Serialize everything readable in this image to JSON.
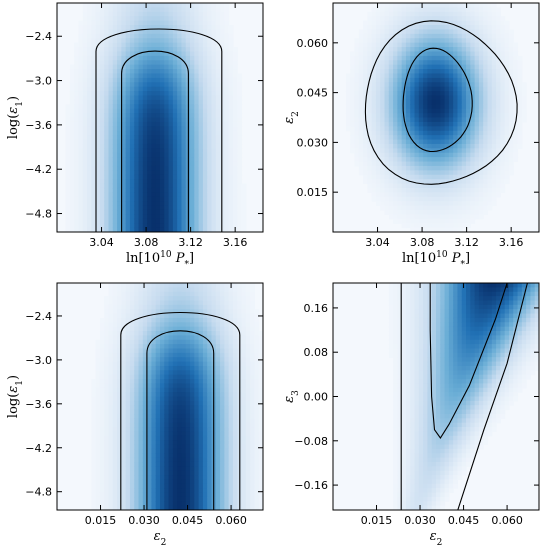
{
  "chart_data": [
    {
      "type": "heatmap",
      "title": "",
      "xlabel": "ln[10^10 P_*]",
      "ylabel": "log(ε1)",
      "xlim": [
        3.0,
        3.185
      ],
      "ylim": [
        -5.05,
        -1.95
      ],
      "xticks": [
        3.04,
        3.08,
        3.12,
        3.16
      ],
      "xtick_labels": [
        "3.04",
        "3.08",
        "3.12",
        "3.16"
      ],
      "yticks": [
        -2.4,
        -3.0,
        -3.6,
        -4.2,
        -4.8
      ],
      "ytick_labels": [
        "−2.4",
        "−3.0",
        "−3.6",
        "−4.2",
        "−4.8"
      ],
      "peak": {
        "x": 3.09,
        "y": -4.6
      },
      "density_shape": "plateau",
      "contours": [
        {
          "level": "68%",
          "x_range": [
            3.058,
            3.118
          ],
          "y_top": -2.5
        },
        {
          "level": "95%",
          "x_range": [
            3.035,
            3.148
          ],
          "y_top": -2.2
        }
      ],
      "colormap": [
        "#f4f8fd",
        "#c6dbef",
        "#6baed6",
        "#2171b5",
        "#08306b"
      ],
      "grid": false
    },
    {
      "type": "heatmap",
      "title": "",
      "xlabel": "ln[10^10 P_*]",
      "ylabel": "ε2",
      "xlim": [
        3.0,
        3.185
      ],
      "ylim": [
        0.003,
        0.072
      ],
      "xticks": [
        3.04,
        3.08,
        3.12,
        3.16
      ],
      "xtick_labels": [
        "3.04",
        "3.08",
        "3.12",
        "3.16"
      ],
      "yticks": [
        0.015,
        0.03,
        0.045,
        0.06
      ],
      "ytick_labels": [
        "0.015",
        "0.030",
        "0.045",
        "0.060"
      ],
      "peak": {
        "x": 3.092,
        "y": 0.042
      },
      "density_shape": "gaussian",
      "contours": [
        {
          "level": "68%",
          "center": [
            3.093,
            0.0425
          ],
          "half_width_x": 0.031,
          "half_width_y": 0.0155
        },
        {
          "level": "95%",
          "center": [
            3.095,
            0.0415
          ],
          "half_width_x": 0.068,
          "half_width_y": 0.0245
        }
      ],
      "colormap": [
        "#f4f8fd",
        "#c6dbef",
        "#6baed6",
        "#2171b5",
        "#08306b"
      ],
      "grid": false
    },
    {
      "type": "heatmap",
      "title": "",
      "xlabel": "ε2",
      "ylabel": "log(ε1)",
      "xlim": [
        0.0,
        0.071
      ],
      "ylim": [
        -5.05,
        -1.95
      ],
      "xticks": [
        0.015,
        0.03,
        0.045,
        0.06
      ],
      "xtick_labels": [
        "0.015",
        "0.030",
        "0.045",
        "0.060"
      ],
      "yticks": [
        -2.4,
        -3.0,
        -3.6,
        -4.2,
        -4.8
      ],
      "ytick_labels": [
        "−2.4",
        "−3.0",
        "−3.6",
        "−4.2",
        "−4.8"
      ],
      "peak": {
        "x": 0.041,
        "y": -4.6
      },
      "density_shape": "plateau",
      "contours": [
        {
          "level": "68%",
          "x_range": [
            0.031,
            0.054
          ],
          "y_top": -2.5
        },
        {
          "level": "95%",
          "x_range": [
            0.022,
            0.063
          ],
          "y_top": -2.25
        }
      ],
      "colormap": [
        "#f4f8fd",
        "#c6dbef",
        "#6baed6",
        "#2171b5",
        "#08306b"
      ],
      "grid": false
    },
    {
      "type": "heatmap",
      "title": "",
      "xlabel": "ε2",
      "ylabel": "ε3",
      "xlim": [
        0.0,
        0.071
      ],
      "ylim": [
        -0.205,
        0.205
      ],
      "xticks": [
        0.015,
        0.03,
        0.045,
        0.06
      ],
      "xtick_labels": [
        "0.015",
        "0.030",
        "0.045",
        "0.060"
      ],
      "yticks": [
        0.16,
        0.08,
        0.0,
        -0.08,
        -0.16
      ],
      "ytick_labels": [
        "0.16",
        "0.08",
        "0.00",
        "−0.08",
        "−0.16"
      ],
      "peak": {
        "x": 0.048,
        "y": 0.19
      },
      "density_shape": "wedge",
      "contours": [
        {
          "level": "68%",
          "points": [
            [
              0.0335,
              0.205
            ],
            [
              0.0335,
              0.12
            ],
            [
              0.034,
              0.0
            ],
            [
              0.035,
              -0.06
            ],
            [
              0.037,
              -0.075
            ],
            [
              0.04,
              -0.05
            ],
            [
              0.047,
              0.02
            ],
            [
              0.056,
              0.14
            ],
            [
              0.06,
              0.205
            ]
          ]
        },
        {
          "level": "95%",
          "points": [
            [
              0.0235,
              0.205
            ],
            [
              0.0235,
              0.0
            ],
            [
              0.0235,
              -0.205
            ],
            [
              0.043,
              -0.205
            ],
            [
              0.052,
              -0.06
            ],
            [
              0.06,
              0.06
            ],
            [
              0.067,
              0.205
            ]
          ]
        }
      ],
      "colormap": [
        "#f4f8fd",
        "#c6dbef",
        "#6baed6",
        "#2171b5",
        "#08306b"
      ],
      "grid": false
    }
  ]
}
